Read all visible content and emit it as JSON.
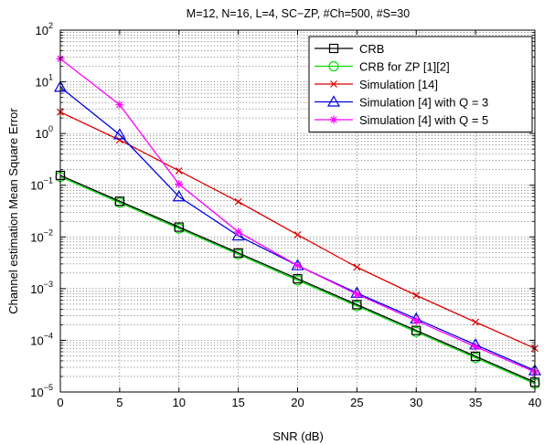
{
  "chart_data": {
    "type": "line",
    "title": "M=12, N=16, L=4, SC−ZP, #Ch=500, #S=30",
    "xlabel": "SNR (dB)",
    "ylabel": "Channel estimation Mean Square Error",
    "xlim": [
      0,
      40
    ],
    "ylim": [
      1e-05,
      100
    ],
    "yscale": "log",
    "grid": true,
    "legend_position": "top-right",
    "x": [
      0,
      5,
      10,
      15,
      20,
      25,
      30,
      35,
      40
    ],
    "x_ticks": [
      "0",
      "5",
      "10",
      "15",
      "20",
      "25",
      "30",
      "35",
      "40"
    ],
    "y_tick_labels": [
      {
        "base": "10",
        "exp": "−5"
      },
      {
        "base": "10",
        "exp": "−4"
      },
      {
        "base": "10",
        "exp": "−3"
      },
      {
        "base": "10",
        "exp": "−2"
      },
      {
        "base": "10",
        "exp": "−1"
      },
      {
        "base": "10",
        "exp": "0"
      },
      {
        "base": "10",
        "exp": "1"
      },
      {
        "base": "10",
        "exp": "2"
      }
    ],
    "series": [
      {
        "name": "CRB",
        "color": "#000000",
        "marker": "square",
        "values": [
          0.155,
          0.049,
          0.0155,
          0.0049,
          0.00155,
          0.00049,
          0.000155,
          4.9e-05,
          1.55e-05
        ]
      },
      {
        "name": "CRB for ZP [1][2]",
        "color": "#00dd00",
        "marker": "circle",
        "values": [
          0.145,
          0.046,
          0.0145,
          0.0046,
          0.00145,
          0.00046,
          0.000145,
          4.6e-05,
          1.45e-05
        ]
      },
      {
        "name": "Simulation [14]",
        "color": "#dd0000",
        "marker": "x",
        "values": [
          2.6,
          0.75,
          0.19,
          0.048,
          0.011,
          0.0026,
          0.00074,
          0.000225,
          7e-05
        ]
      },
      {
        "name": "Simulation [4] with Q = 3",
        "color": "#0000dd",
        "marker": "triangle",
        "values": [
          7.9,
          0.95,
          0.06,
          0.0105,
          0.0028,
          0.00082,
          0.00026,
          8.2e-05,
          2.6e-05
        ]
      },
      {
        "name": "Simulation [4] with Q = 5",
        "color": "#ff00ff",
        "marker": "star",
        "values": [
          28,
          3.6,
          0.105,
          0.0125,
          0.0028,
          0.00078,
          0.00024,
          7.5e-05,
          2.45e-05
        ]
      }
    ]
  }
}
